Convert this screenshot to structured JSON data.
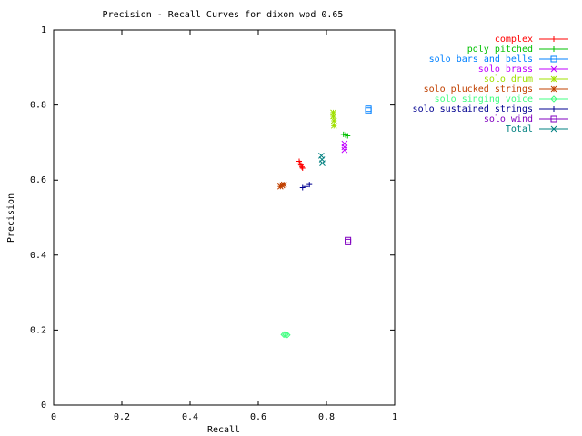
{
  "chart_data": {
    "type": "scatter",
    "title": "Precision - Recall Curves for dixon wpd 0.65",
    "xlabel": "Recall",
    "ylabel": "Precision",
    "xlim": [
      0,
      1
    ],
    "ylim": [
      0,
      1
    ],
    "xticks": [
      0,
      0.2,
      0.4,
      0.6,
      0.8,
      1
    ],
    "yticks": [
      0,
      0.2,
      0.4,
      0.6,
      0.8,
      1
    ],
    "legend": "top-right",
    "series": [
      {
        "name": "complex",
        "color": "#ff0000",
        "marker": "plus",
        "x": [
          0.72,
          0.722,
          0.725,
          0.728,
          0.73
        ],
        "y": [
          0.65,
          0.645,
          0.64,
          0.635,
          0.632
        ]
      },
      {
        "name": "poly pitched",
        "color": "#00c000",
        "marker": "plus",
        "x": [
          0.85,
          0.856,
          0.862
        ],
        "y": [
          0.722,
          0.72,
          0.718
        ]
      },
      {
        "name": "solo bars and bells",
        "color": "#0080ff",
        "marker": "square",
        "x": [
          0.923,
          0.923
        ],
        "y": [
          0.79,
          0.785
        ]
      },
      {
        "name": "solo brass",
        "color": "#c000ff",
        "marker": "cross",
        "x": [
          0.853,
          0.853,
          0.853
        ],
        "y": [
          0.697,
          0.688,
          0.68
        ]
      },
      {
        "name": "solo drum",
        "color": "#a0e000",
        "marker": "star",
        "x": [
          0.82,
          0.82,
          0.822,
          0.822
        ],
        "y": [
          0.78,
          0.77,
          0.758,
          0.745
        ]
      },
      {
        "name": "solo plucked strings",
        "color": "#c04000",
        "marker": "star",
        "x": [
          0.665,
          0.67,
          0.675
        ],
        "y": [
          0.583,
          0.586,
          0.588
        ]
      },
      {
        "name": "solo singing voice",
        "color": "#40ff80",
        "marker": "diamond",
        "x": [
          0.675,
          0.68,
          0.685
        ],
        "y": [
          0.188,
          0.188,
          0.187
        ]
      },
      {
        "name": "solo sustained strings",
        "color": "#000090",
        "marker": "plus",
        "x": [
          0.73,
          0.74,
          0.75
        ],
        "y": [
          0.58,
          0.583,
          0.588
        ]
      },
      {
        "name": "solo wind",
        "color": "#8000c0",
        "marker": "square",
        "x": [
          0.863,
          0.863
        ],
        "y": [
          0.44,
          0.435
        ]
      },
      {
        "name": "Total",
        "color": "#008080",
        "marker": "cross",
        "x": [
          0.785,
          0.787,
          0.788
        ],
        "y": [
          0.665,
          0.655,
          0.645
        ]
      }
    ]
  }
}
